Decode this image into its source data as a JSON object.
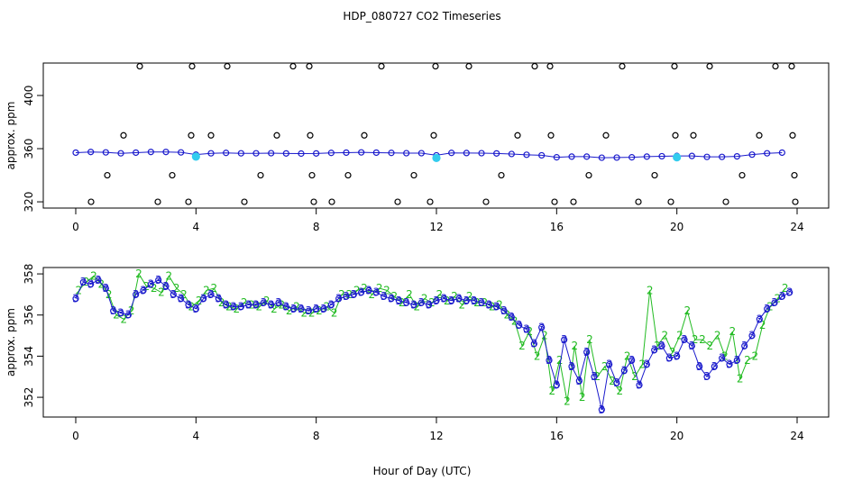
{
  "chart_data": [
    {
      "type": "scatter",
      "title": "HDP_080727  CO2 Timeseries",
      "ylabel": "approx. ppm",
      "xlim": [
        -1.08,
        25.05
      ],
      "xticks": [
        0,
        4,
        8,
        12,
        16,
        20,
        24
      ],
      "ylim": [
        315.3,
        424.4
      ],
      "yticks": [
        320,
        360,
        400
      ],
      "series": [
        {
          "color": "#000000",
          "marker": "circle",
          "line": false,
          "x": [
            2.13,
            3.87,
            5.04,
            7.23,
            7.77,
            10.17,
            11.97,
            13.08,
            15.27,
            15.78,
            18.18,
            19.92,
            21.09,
            23.28,
            23.82,
            1.59,
            3.84,
            4.5,
            6.69,
            7.8,
            9.6,
            11.91,
            14.7,
            15.81,
            17.64,
            19.95,
            20.55,
            22.74,
            23.85,
            1.05,
            3.21,
            6.15,
            7.86,
            9.06,
            11.25,
            14.16,
            17.07,
            19.26,
            22.17,
            23.91,
            0.51,
            2.73,
            3.75,
            5.61,
            7.92,
            8.52,
            10.71,
            11.79,
            13.65,
            15.93,
            16.56,
            18.72,
            19.8,
            21.63,
            23.94
          ],
          "values": [
            422,
            422,
            422,
            422,
            422,
            422,
            422,
            422,
            422,
            422,
            422,
            422,
            422,
            422,
            422,
            370,
            370,
            370,
            370,
            370,
            370,
            370,
            370,
            370,
            370,
            370,
            370,
            370,
            370,
            340,
            340,
            340,
            340,
            340,
            340,
            340,
            340,
            340,
            340,
            340,
            320,
            320,
            320,
            320,
            320,
            320,
            320,
            320,
            320,
            320,
            320,
            320,
            320,
            320,
            320
          ]
        },
        {
          "color": "#1a1acc",
          "marker": "circle",
          "line": true,
          "x": [
            0,
            0.5,
            1,
            1.5,
            2,
            2.5,
            3,
            3.5,
            4,
            4.5,
            5,
            5.5,
            6,
            6.5,
            7,
            7.5,
            8,
            8.5,
            9,
            9.5,
            10,
            10.5,
            11,
            11.5,
            12,
            12.5,
            13,
            13.5,
            14,
            14.5,
            15,
            15.5,
            16,
            16.5,
            17,
            17.5,
            18,
            18.5,
            19,
            19.5,
            20,
            20.5,
            21,
            21.5,
            22,
            22.5,
            23,
            23.5
          ],
          "values": [
            357,
            357.5,
            357.2,
            356.5,
            357,
            357.5,
            357.5,
            357.2,
            355.5,
            356.5,
            356.8,
            356.5,
            356.5,
            356.6,
            356.4,
            356.3,
            356.4,
            356.8,
            357,
            357.2,
            357,
            356.8,
            356.6,
            356.6,
            355,
            356.8,
            356.7,
            356.6,
            356.4,
            356,
            355.4,
            355,
            353.5,
            354,
            354,
            353.2,
            353.3,
            353.5,
            354,
            354.3,
            354.5,
            354.5,
            353.8,
            353.8,
            354.2,
            355.5,
            356.5,
            357
          ]
        },
        {
          "color": "#33ccee",
          "marker": "circle",
          "line": false,
          "x": [
            4.0,
            12.0,
            20.0
          ],
          "values": [
            354,
            353,
            353.5
          ]
        }
      ]
    },
    {
      "type": "scatter",
      "ylabel": "approx. ppm",
      "xlabel": "Hour of Day (UTC)",
      "xlim": [
        -1.08,
        25.05
      ],
      "xticks": [
        0,
        4,
        8,
        12,
        16,
        20,
        24
      ],
      "ylim": [
        351.04,
        358.31
      ],
      "yticks": [
        352,
        354,
        356,
        358
      ],
      "series": [
        {
          "color": "#22bb22",
          "marker": "2",
          "line": true,
          "x": [
            0.1,
            0.35,
            0.6,
            0.85,
            1.1,
            1.35,
            1.6,
            1.85,
            2.1,
            2.35,
            2.6,
            2.85,
            3.1,
            3.35,
            3.6,
            3.85,
            4.1,
            4.35,
            4.6,
            4.85,
            5.1,
            5.35,
            5.6,
            5.85,
            6.1,
            6.35,
            6.6,
            6.85,
            7.1,
            7.35,
            7.6,
            7.85,
            8.1,
            8.35,
            8.6,
            8.85,
            9.1,
            9.35,
            9.6,
            9.85,
            10.1,
            10.35,
            10.6,
            10.85,
            11.1,
            11.35,
            11.6,
            11.85,
            12.1,
            12.35,
            12.6,
            12.85,
            13.1,
            13.35,
            13.6,
            13.85,
            14.1,
            14.35,
            14.6,
            14.85,
            15.1,
            15.35,
            15.6,
            15.85,
            16.1,
            16.35,
            16.6,
            16.85,
            17.1,
            17.35,
            17.6,
            17.85,
            18.1,
            18.35,
            18.6,
            18.85,
            19.1,
            19.35,
            19.6,
            19.85,
            20.1,
            20.35,
            20.6,
            20.85,
            21.1,
            21.35,
            21.6,
            21.85,
            22.1,
            22.35,
            22.6,
            22.85,
            23.1,
            23.35,
            23.6
          ],
          "values": [
            357.2,
            357.6,
            357.9,
            357.5,
            357.0,
            356.0,
            355.8,
            356.2,
            358.0,
            357.4,
            357.3,
            357.1,
            357.9,
            357.3,
            357.0,
            356.4,
            356.7,
            357.2,
            357.3,
            356.6,
            356.4,
            356.3,
            356.6,
            356.5,
            356.4,
            356.7,
            356.3,
            356.5,
            356.2,
            356.4,
            356.1,
            356.1,
            356.2,
            356.4,
            356.1,
            357.0,
            357.0,
            357.2,
            357.3,
            357.0,
            357.3,
            357.2,
            356.9,
            356.6,
            357.0,
            356.4,
            356.8,
            356.6,
            357.0,
            356.7,
            356.9,
            356.5,
            356.9,
            356.6,
            356.6,
            356.4,
            356.5,
            356.0,
            355.7,
            354.5,
            355.2,
            354.0,
            355.0,
            352.3,
            353.8,
            351.8,
            354.5,
            352.0,
            354.8,
            353.0,
            353.5,
            352.8,
            352.3,
            354.0,
            353.0,
            353.6,
            357.2,
            354.5,
            355.0,
            354.2,
            355.0,
            356.2,
            354.8,
            354.8,
            354.5,
            355.0,
            354.0,
            355.2,
            352.9,
            353.8,
            354.0,
            355.5,
            356.4,
            356.8,
            357.3
          ]
        },
        {
          "color": "#1a1acc",
          "marker": "3",
          "line": true,
          "x": [
            0,
            0.25,
            0.5,
            0.75,
            1,
            1.25,
            1.5,
            1.75,
            2,
            2.25,
            2.5,
            2.75,
            3,
            3.25,
            3.5,
            3.75,
            4,
            4.25,
            4.5,
            4.75,
            5,
            5.25,
            5.5,
            5.75,
            6,
            6.25,
            6.5,
            6.75,
            7,
            7.25,
            7.5,
            7.75,
            8,
            8.25,
            8.5,
            8.75,
            9,
            9.25,
            9.5,
            9.75,
            10,
            10.25,
            10.5,
            10.75,
            11,
            11.25,
            11.5,
            11.75,
            12,
            12.25,
            12.5,
            12.75,
            13,
            13.25,
            13.5,
            13.75,
            14,
            14.25,
            14.5,
            14.75,
            15,
            15.25,
            15.5,
            15.75,
            16,
            16.25,
            16.5,
            16.75,
            17,
            17.25,
            17.5,
            17.75,
            18,
            18.25,
            18.5,
            18.75,
            19,
            19.25,
            19.5,
            19.75,
            20,
            20.25,
            20.5,
            20.75,
            21,
            21.25,
            21.5,
            21.75,
            22,
            22.25,
            22.5,
            22.75,
            23,
            23.25,
            23.5,
            23.75
          ],
          "values": [
            356.8,
            357.6,
            357.5,
            357.7,
            357.3,
            356.2,
            356.1,
            356.0,
            357.0,
            357.2,
            357.5,
            357.7,
            357.4,
            357.0,
            356.8,
            356.5,
            356.3,
            356.8,
            357.0,
            356.8,
            356.5,
            356.4,
            356.4,
            356.5,
            356.5,
            356.6,
            356.5,
            356.6,
            356.4,
            356.3,
            356.3,
            356.2,
            356.3,
            356.3,
            356.5,
            356.8,
            356.9,
            357.0,
            357.1,
            357.2,
            357.1,
            356.9,
            356.8,
            356.7,
            356.6,
            356.5,
            356.6,
            356.5,
            356.7,
            356.8,
            356.7,
            356.8,
            356.7,
            356.7,
            356.6,
            356.5,
            356.4,
            356.2,
            355.9,
            355.5,
            355.3,
            354.6,
            355.4,
            353.8,
            352.6,
            354.8,
            353.5,
            352.8,
            354.2,
            353.0,
            351.4,
            353.6,
            352.7,
            353.3,
            353.8,
            352.6,
            353.6,
            354.3,
            354.5,
            353.9,
            354.0,
            354.8,
            354.5,
            353.5,
            353.0,
            353.5,
            353.9,
            353.6,
            353.8,
            354.5,
            355.0,
            355.8,
            356.3,
            356.6,
            356.9,
            357.1
          ]
        }
      ]
    }
  ]
}
